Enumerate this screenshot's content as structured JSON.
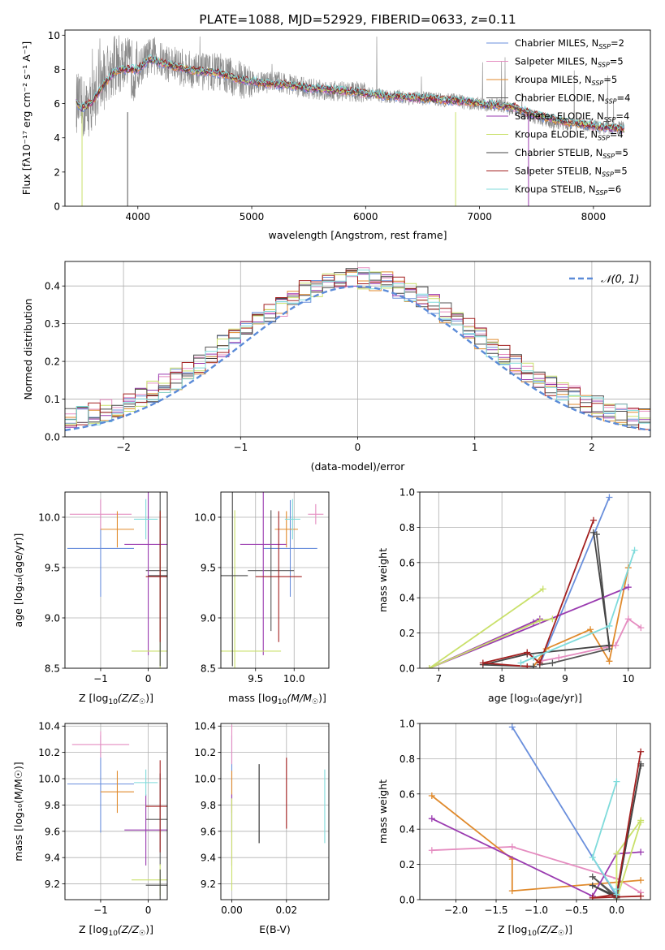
{
  "colors": {
    "series": [
      "#6a8fdc",
      "#e58cc0",
      "#e08a2c",
      "#555555",
      "#9a3bb0",
      "#c9e06a",
      "#444444",
      "#a32020",
      "#7fdbdb"
    ],
    "normal_curve": "#5b8bd8",
    "spectrum": "#888888"
  },
  "legend_series": [
    {
      "base": "Chabrier MILES, N",
      "sub": "SSP",
      "suffix": "=2"
    },
    {
      "base": "Salpeter MILES, N",
      "sub": "SSP",
      "suffix": "=5"
    },
    {
      "base": "Kroupa MILES, N",
      "sub": "SSP",
      "suffix": "=5"
    },
    {
      "base": "Chabrier ELODIE, N",
      "sub": "SSP",
      "suffix": "=4"
    },
    {
      "base": "Salpeter ELODIE, N",
      "sub": "SSP",
      "suffix": "=4"
    },
    {
      "base": "Kroupa ELODIE, N",
      "sub": "SSP",
      "suffix": "=4"
    },
    {
      "base": "Chabrier STELIB, N",
      "sub": "SSP",
      "suffix": "=5"
    },
    {
      "base": "Salpeter STELIB, N",
      "sub": "SSP",
      "suffix": "=5"
    },
    {
      "base": "Kroupa STELIB, N",
      "sub": "SSP",
      "suffix": "=6"
    }
  ],
  "chart_data": [
    {
      "id": "spectrum",
      "type": "line",
      "title": "PLATE=1088, MJD=52929, FIBERID=0633, z=0.11",
      "xlabel": "wavelength [Angstrom, rest frame]",
      "ylabel": "Flux [fλ10⁻¹⁷ erg cm⁻² s⁻¹ A⁻¹]",
      "xlim": [
        3360,
        8500
      ],
      "ylim": [
        0,
        10.3
      ],
      "xticks": [
        4000,
        5000,
        6000,
        7000,
        8000
      ],
      "yticks": [
        0,
        2,
        4,
        6,
        8,
        10
      ],
      "grid": false,
      "legend": "top-right",
      "data_x": [
        3460,
        3500,
        3550,
        3600,
        3650,
        3700,
        3750,
        3800,
        3850,
        3900,
        3950,
        4000,
        4050,
        4100,
        4150,
        4200,
        4300,
        4400,
        4500,
        4600,
        4700,
        4800,
        4900,
        5000,
        5100,
        5200,
        5300,
        5400,
        5500,
        5600,
        5700,
        5800,
        5900,
        6000,
        6100,
        6200,
        6300,
        6400,
        6500,
        6600,
        6700,
        6800,
        6900,
        7000,
        7100,
        7200,
        7300,
        7400,
        7500,
        7600,
        7700,
        7800,
        7900,
        8000,
        8100,
        8200,
        8270
      ],
      "data_y": [
        6.1,
        5.8,
        5.6,
        6.2,
        6.8,
        7.4,
        7.9,
        8.2,
        8.3,
        8.1,
        8.0,
        7.9,
        8.4,
        8.7,
        8.8,
        8.5,
        8.3,
        8.1,
        7.9,
        7.8,
        7.9,
        7.6,
        7.4,
        7.3,
        7.2,
        7.3,
        7.2,
        7.0,
        6.9,
        6.8,
        6.8,
        6.7,
        6.7,
        6.6,
        6.5,
        6.4,
        6.4,
        6.3,
        6.3,
        6.3,
        6.2,
        6.2,
        6.0,
        6.0,
        5.9,
        5.9,
        5.6,
        5.4,
        5.2,
        5.0,
        4.9,
        4.8,
        4.8,
        4.7,
        4.6,
        4.6,
        4.6
      ],
      "model_x": [
        3460,
        3500,
        3600,
        3700,
        3800,
        3900,
        4000,
        4100,
        4200,
        4300,
        4500,
        4700,
        4900,
        5100,
        5300,
        5500,
        5700,
        5900,
        6100,
        6300,
        6500,
        6700,
        6900,
        7100,
        7300,
        7500,
        7700,
        7900,
        8100,
        8270
      ],
      "model_y": [
        6.1,
        5.7,
        6.1,
        7.1,
        7.9,
        8.0,
        8.0,
        8.6,
        8.4,
        8.2,
        7.9,
        7.8,
        7.4,
        7.2,
        7.1,
        6.9,
        6.8,
        6.7,
        6.5,
        6.4,
        6.3,
        6.2,
        6.1,
        5.9,
        5.8,
        5.3,
        5.0,
        4.8,
        4.6,
        4.5
      ]
    },
    {
      "id": "residuals",
      "type": "line",
      "xlabel": "(data-model)/error",
      "ylabel": "Normed distribution",
      "xlim": [
        -2.5,
        2.5
      ],
      "ylim": [
        0,
        0.465
      ],
      "xticks": [
        -2,
        -1,
        0,
        1,
        2
      ],
      "yticks": [
        0.0,
        0.1,
        0.2,
        0.3,
        0.4
      ],
      "grid": true,
      "legend": "top-right",
      "curve_label": "𝒩(0, 1)",
      "bin_width": 0.1
    },
    {
      "id": "age_vs_Z",
      "type": "scatter",
      "xlabel_base": "Z [log",
      "xlabel_sub": "10",
      "xlabel_rest": "(Z/Z",
      "xlabel_end": ")]",
      "ylabel": "age  [log₁₀(age/yr)]",
      "xlim": [
        -1.75,
        0.4
      ],
      "ylim": [
        8.5,
        10.25
      ],
      "xticks": [
        -1,
        0
      ],
      "yticks": [
        8.5,
        9.0,
        9.5,
        10.0
      ],
      "grid": true,
      "points": [
        {
          "x": -1.0,
          "y": 9.69,
          "xerr": 0.7,
          "yerr": 0.48,
          "s": 0
        },
        {
          "x": -1.0,
          "y": 10.03,
          "xerr": 0.65,
          "yerr": 0.15,
          "s": 1
        },
        {
          "x": -0.65,
          "y": 9.88,
          "xerr": 0.35,
          "yerr": 0.18,
          "s": 2
        },
        {
          "x": 0.25,
          "y": 9.47,
          "xerr": 0.3,
          "yerr": 0.6,
          "s": 3
        },
        {
          "x": 0.0,
          "y": 9.73,
          "xerr": 0.5,
          "yerr": 1.1,
          "s": 4
        },
        {
          "x": 0.25,
          "y": 8.67,
          "xerr": 0.6,
          "yerr": 1.4,
          "s": 5
        },
        {
          "x": 0.25,
          "y": 9.42,
          "xerr": 0.25,
          "yerr": 0.9,
          "s": 6
        },
        {
          "x": 0.25,
          "y": 9.41,
          "xerr": 0.3,
          "yerr": 0.65,
          "s": 7
        },
        {
          "x": -0.05,
          "y": 9.98,
          "xerr": 0.25,
          "yerr": 0.2,
          "s": 8
        }
      ]
    },
    {
      "id": "age_vs_mass",
      "type": "scatter",
      "xlabel_base": "mass [log",
      "xlabel_sub": "10",
      "xlabel_rest": "(M/M",
      "xlabel_end": ")]",
      "xlim": [
        9.05,
        10.45
      ],
      "ylim": [
        8.5,
        10.25
      ],
      "xticks": [
        9.5,
        10.0
      ],
      "yticks": [
        8.5,
        9.0,
        9.5,
        10.0
      ],
      "grid": true,
      "points": [
        {
          "x": 9.95,
          "y": 9.69,
          "xerr": 0.35,
          "yerr": 0.48,
          "s": 0
        },
        {
          "x": 10.28,
          "y": 10.03,
          "xerr": 0.1,
          "yerr": 0.1,
          "s": 1
        },
        {
          "x": 9.9,
          "y": 9.88,
          "xerr": 0.15,
          "yerr": 0.18,
          "s": 2
        },
        {
          "x": 9.7,
          "y": 9.47,
          "xerr": 0.3,
          "yerr": 0.6,
          "s": 3
        },
        {
          "x": 9.6,
          "y": 9.73,
          "xerr": 0.3,
          "yerr": 1.1,
          "s": 4
        },
        {
          "x": 9.23,
          "y": 8.67,
          "xerr": 0.6,
          "yerr": 1.4,
          "s": 5
        },
        {
          "x": 9.2,
          "y": 9.42,
          "xerr": 0.2,
          "yerr": 0.9,
          "s": 6
        },
        {
          "x": 9.8,
          "y": 9.41,
          "xerr": 0.3,
          "yerr": 0.65,
          "s": 7
        },
        {
          "x": 9.98,
          "y": 9.98,
          "xerr": 0.1,
          "yerr": 0.2,
          "s": 8
        }
      ]
    },
    {
      "id": "weight_vs_age",
      "type": "line",
      "xlabel": "age  [log₁₀(age/yr)]",
      "ylabel": "mass weight",
      "xlim": [
        6.7,
        10.35
      ],
      "ylim": [
        0,
        1.0
      ],
      "xticks": [
        7,
        8,
        9,
        10
      ],
      "yticks": [
        0.0,
        0.2,
        0.4,
        0.6,
        0.8,
        1.0
      ],
      "grid": true,
      "series": [
        {
          "s": 0,
          "x": [
            9.7,
            8.6
          ],
          "y": [
            0.97,
            0.02
          ]
        },
        {
          "s": 1,
          "x": [
            10.2,
            10.0,
            9.8,
            8.9,
            8.6
          ],
          "y": [
            0.23,
            0.28,
            0.13,
            0.06,
            0.04
          ]
        },
        {
          "s": 2,
          "x": [
            10.0,
            9.7,
            9.4,
            8.7,
            8.5
          ],
          "y": [
            0.57,
            0.04,
            0.22,
            0.11,
            0.01
          ]
        },
        {
          "s": 3,
          "x": [
            9.5,
            9.7,
            8.8,
            8.6
          ],
          "y": [
            0.76,
            0.11,
            0.03,
            0.02
          ]
        },
        {
          "s": 4,
          "x": [
            10.0,
            6.85,
            8.6,
            8.5
          ],
          "y": [
            0.46,
            0.0,
            0.28,
            0.26
          ]
        },
        {
          "s": 5,
          "x": [
            8.65,
            6.85,
            8.6,
            8.8
          ],
          "y": [
            0.45,
            0.0,
            0.27,
            0.28
          ]
        },
        {
          "s": 6,
          "x": [
            9.45,
            9.7,
            8.4,
            7.7,
            8.5
          ],
          "y": [
            0.77,
            0.13,
            0.08,
            0.02,
            0.01
          ]
        },
        {
          "s": 7,
          "x": [
            9.45,
            8.6,
            8.4,
            7.7,
            8.4
          ],
          "y": [
            0.84,
            0.03,
            0.09,
            0.03,
            0.01
          ]
        },
        {
          "s": 8,
          "x": [
            10.1,
            9.7,
            8.3,
            8.5
          ],
          "y": [
            0.67,
            0.24,
            0.03,
            0.06
          ]
        }
      ]
    },
    {
      "id": "mass_vs_Z",
      "type": "scatter",
      "xlabel_base": "Z [log",
      "xlabel_sub": "10",
      "xlabel_rest": "(Z/Z",
      "xlabel_end": ")]",
      "ylabel": "mass [log₁₀(M/M☉)]",
      "xlim": [
        -1.75,
        0.4
      ],
      "ylim": [
        9.08,
        10.42
      ],
      "xticks": [
        -1,
        0
      ],
      "yticks": [
        9.2,
        9.4,
        9.6,
        9.8,
        10.0,
        10.2,
        10.4
      ],
      "grid": true,
      "points": [
        {
          "x": -1.0,
          "y": 9.96,
          "xerr": 0.7,
          "yerr": 0.37,
          "s": 0
        },
        {
          "x": -1.0,
          "y": 10.26,
          "xerr": 0.6,
          "yerr": 0.1,
          "s": 1
        },
        {
          "x": -0.65,
          "y": 9.9,
          "xerr": 0.35,
          "yerr": 0.16,
          "s": 2
        },
        {
          "x": 0.25,
          "y": 9.69,
          "xerr": 0.3,
          "yerr": 0.35,
          "s": 3
        },
        {
          "x": -0.05,
          "y": 9.61,
          "xerr": 0.45,
          "yerr": 0.27,
          "s": 4
        },
        {
          "x": 0.25,
          "y": 9.23,
          "xerr": 0.6,
          "yerr": 0.12,
          "s": 5
        },
        {
          "x": 0.25,
          "y": 9.19,
          "xerr": 0.3,
          "yerr": 0.12,
          "s": 6
        },
        {
          "x": 0.25,
          "y": 9.79,
          "xerr": 0.3,
          "yerr": 0.35,
          "s": 7
        },
        {
          "x": -0.05,
          "y": 9.97,
          "xerr": 0.25,
          "yerr": 0.1,
          "s": 8
        }
      ]
    },
    {
      "id": "mass_vs_ebv",
      "type": "scatter",
      "xlabel": "E(B-V)",
      "xlim": [
        -0.004,
        0.0355
      ],
      "ylim": [
        9.08,
        10.42
      ],
      "xticks": [
        0.0,
        0.02
      ],
      "yticks": [
        9.2,
        9.4,
        9.6,
        9.8,
        10.0,
        10.2,
        10.4
      ],
      "grid": true,
      "points": [
        {
          "x": 0.0,
          "y": 9.96,
          "xerr": 0,
          "yerr": 0.37,
          "s": 0
        },
        {
          "x": 0.0,
          "y": 10.26,
          "xerr": 0,
          "yerr": 0.15,
          "s": 1
        },
        {
          "x": 0.0,
          "y": 9.9,
          "xerr": 0,
          "yerr": 0.16,
          "s": 2
        },
        {
          "x": 0.01,
          "y": 9.81,
          "xerr": 0,
          "yerr": 0.3,
          "s": 3
        },
        {
          "x": 0.0,
          "y": 9.61,
          "xerr": 0,
          "yerr": 0.27,
          "s": 4
        },
        {
          "x": 0.0,
          "y": 9.5,
          "xerr": 0,
          "yerr": 0.35,
          "s": 5
        },
        {
          "x": 0.01,
          "y": 9.81,
          "xerr": 0,
          "yerr": 0.3,
          "s": 6
        },
        {
          "x": 0.02,
          "y": 9.89,
          "xerr": 0,
          "yerr": 0.27,
          "s": 7
        },
        {
          "x": 0.034,
          "y": 9.79,
          "xerr": 0,
          "yerr": 0.28,
          "s": 8
        }
      ]
    },
    {
      "id": "weight_vs_Z",
      "type": "line",
      "xlabel_base": "Z [log",
      "xlabel_sub": "10",
      "xlabel_rest": "(Z/Z",
      "xlabel_end": ")]",
      "ylabel": "mass weight",
      "xlim": [
        -2.45,
        0.42
      ],
      "ylim": [
        0,
        1.0
      ],
      "xticks": [
        -2.0,
        -1.5,
        -1.0,
        -0.5,
        0.0
      ],
      "yticks": [
        0.0,
        0.2,
        0.4,
        0.6,
        0.8,
        1.0
      ],
      "grid": true,
      "series": [
        {
          "s": 0,
          "x": [
            -1.3,
            0.0
          ],
          "y": [
            0.98,
            0.02
          ]
        },
        {
          "s": 1,
          "x": [
            -2.3,
            -1.3,
            0.0,
            0.3
          ],
          "y": [
            0.28,
            0.3,
            0.12,
            0.04
          ]
        },
        {
          "s": 2,
          "x": [
            -2.3,
            -1.3,
            -1.3,
            0.3
          ],
          "y": [
            0.59,
            0.23,
            0.05,
            0.11
          ]
        },
        {
          "s": 3,
          "x": [
            0.3,
            0.0,
            -0.3,
            0.0
          ],
          "y": [
            0.76,
            0.02,
            0.13,
            0.01
          ]
        },
        {
          "s": 4,
          "x": [
            -2.3,
            -0.3,
            0.0,
            0.3
          ],
          "y": [
            0.46,
            0.02,
            0.26,
            0.27
          ]
        },
        {
          "s": 5,
          "x": [
            0.3,
            0.0,
            0.0,
            0.3
          ],
          "y": [
            0.45,
            0.26,
            0.0,
            0.44
          ]
        },
        {
          "s": 6,
          "x": [
            0.3,
            0.0,
            -0.3,
            0.0
          ],
          "y": [
            0.77,
            0.01,
            0.08,
            0.02
          ]
        },
        {
          "s": 7,
          "x": [
            0.3,
            0.0,
            -0.3,
            0.3
          ],
          "y": [
            0.84,
            0.03,
            0.01,
            0.02
          ]
        },
        {
          "s": 8,
          "x": [
            0.0,
            -0.3,
            0.0,
            0.0
          ],
          "y": [
            0.67,
            0.24,
            0.03,
            0.06
          ]
        }
      ]
    }
  ]
}
